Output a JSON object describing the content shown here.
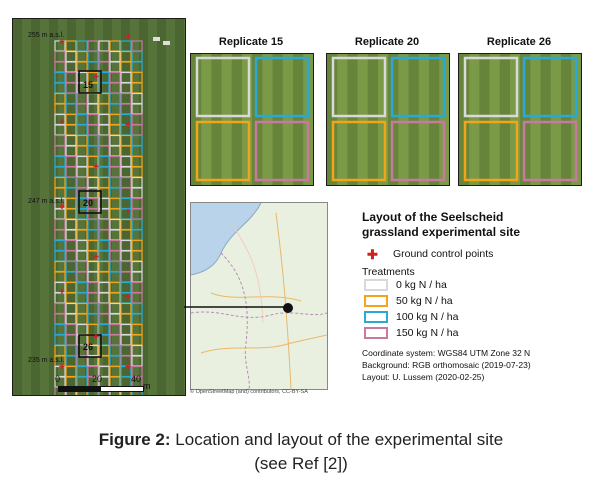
{
  "aerial": {
    "altitudes": [
      "255 m a.s.l.",
      "247 m a.s.l.",
      "235 m a.s.l."
    ],
    "plot_labels": [
      "15",
      "20",
      "26"
    ],
    "scale": {
      "ticks": [
        "0",
        "20",
        "40"
      ],
      "unit": "m"
    }
  },
  "replicates": [
    {
      "title": "Replicate 15"
    },
    {
      "title": "Replicate 20"
    },
    {
      "title": "Replicate 26"
    }
  ],
  "map": {
    "credit": "© OpenStreetMap (and) contributors, CC-BY-SA"
  },
  "legend": {
    "title_line1": "Layout of the Seelscheid",
    "title_line2": "grassland experimental site",
    "gcp_label": "Ground control points",
    "gcp_color": "#cc2222",
    "treatments_label": "Treatments",
    "treatments": [
      {
        "label": "0 kg N / ha",
        "color": "#d9d9d9"
      },
      {
        "label": "50 kg N / ha",
        "color": "#f2a51a"
      },
      {
        "label": "100 kg N / ha",
        "color": "#2aa9d6"
      },
      {
        "label": "150 kg N / ha",
        "color": "#c9799f"
      }
    ],
    "meta": [
      "Coordinate system: WGS84 UTM Zone 32 N",
      "Background: RGB orthomosaic (2019-07-23)",
      "Layout: U. Lussem (2020-02-25)"
    ]
  },
  "caption": {
    "bold": "Figure 2:",
    "line1": " Location and layout of the experimental site",
    "line2": "(see Ref [2])"
  }
}
